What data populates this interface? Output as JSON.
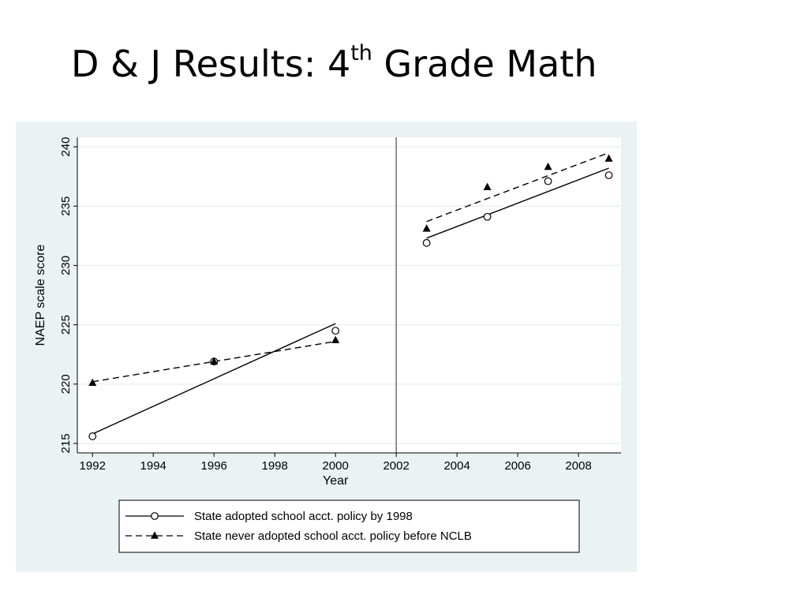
{
  "slide": {
    "title_main": "D & J Results: 4",
    "title_sup": "th",
    "title_tail": " Grade Math"
  },
  "colors": {
    "panel_background": "#eaf2f3",
    "plot_background": "#ffffff",
    "grid": "#eaf2f3",
    "series": "#000000",
    "divider": "#666666"
  },
  "chart_data": {
    "type": "scatter",
    "title": "",
    "xlabel": "Year",
    "ylabel": "NAEP scale score",
    "xlim": [
      1991.5,
      2009.4
    ],
    "ylim": [
      214.2,
      240.8
    ],
    "x_ticks": [
      1992,
      1994,
      1996,
      1998,
      2000,
      2002,
      2004,
      2006,
      2008
    ],
    "y_ticks": [
      215,
      220,
      225,
      230,
      235,
      240
    ],
    "grid": "horizontal",
    "vertical_reference_line": 2002,
    "legend_position": "bottom",
    "series": [
      {
        "name": "State adopted school acct. policy by 1998",
        "marker": "hollow-circle",
        "line_style": "solid",
        "points": [
          {
            "x": 1992,
            "y": 215.6
          },
          {
            "x": 1996,
            "y": 221.9
          },
          {
            "x": 2000,
            "y": 224.5
          },
          {
            "x": 2003,
            "y": 231.9
          },
          {
            "x": 2005,
            "y": 234.1
          },
          {
            "x": 2007,
            "y": 237.1
          },
          {
            "x": 2009,
            "y": 237.6
          }
        ],
        "fit_segments": [
          {
            "x": [
              1992,
              2000
            ],
            "y": [
              215.8,
              225.1
            ]
          },
          {
            "x": [
              2003,
              2009
            ],
            "y": [
              232.3,
              238.2
            ]
          }
        ]
      },
      {
        "name": "State never adopted school acct. policy before NCLB",
        "marker": "filled-triangle",
        "line_style": "dashed",
        "points": [
          {
            "x": 1992,
            "y": 220.1
          },
          {
            "x": 1996,
            "y": 221.9
          },
          {
            "x": 2000,
            "y": 223.7
          },
          {
            "x": 2003,
            "y": 233.1
          },
          {
            "x": 2005,
            "y": 236.6
          },
          {
            "x": 2007,
            "y": 238.3
          },
          {
            "x": 2009,
            "y": 239.0
          }
        ],
        "fit_segments": [
          {
            "x": [
              1992,
              2000
            ],
            "y": [
              220.2,
              223.6
            ]
          },
          {
            "x": [
              2003,
              2009
            ],
            "y": [
              233.7,
              239.5
            ]
          }
        ]
      }
    ],
    "line_style_note": "fit line style per legend: solid = first legend entry, dashed = second"
  }
}
